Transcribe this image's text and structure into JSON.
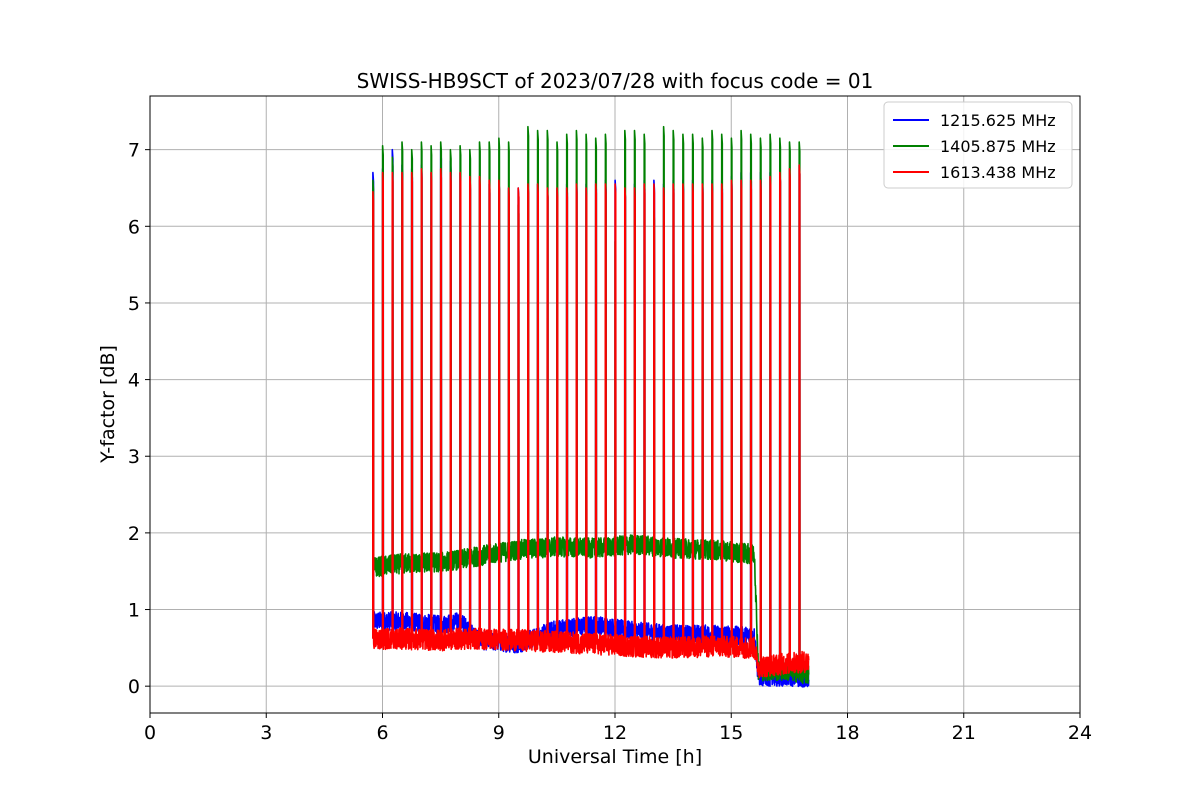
{
  "chart_data": {
    "type": "line",
    "title": "SWISS-HB9SCT of 2023/07/28 with focus code = 01",
    "xlabel": "Universal Time [h]",
    "ylabel": "Y-factor [dB]",
    "xlim": [
      0,
      24
    ],
    "ylim": [
      -0.35,
      7.7
    ],
    "x_ticks": [
      0,
      3,
      6,
      9,
      12,
      15,
      18,
      21,
      24
    ],
    "y_ticks": [
      0,
      1,
      2,
      3,
      4,
      5,
      6,
      7
    ],
    "grid": true,
    "legend_position": "top-right",
    "observation_start_h": 5.75,
    "observation_end_h": 17.0,
    "calibration_pulse_times_h": [
      5.75,
      6.0,
      6.25,
      6.5,
      6.75,
      7.0,
      7.25,
      7.5,
      7.75,
      8.0,
      8.25,
      8.5,
      8.75,
      9.0,
      9.25,
      9.5,
      9.75,
      10.0,
      10.25,
      10.5,
      10.75,
      11.0,
      11.25,
      11.5,
      11.75,
      12.0,
      12.25,
      12.5,
      12.75,
      13.0,
      13.25,
      13.5,
      13.75,
      14.0,
      14.25,
      14.5,
      14.75,
      15.0,
      15.25,
      15.5,
      15.75,
      16.0,
      16.25,
      16.5,
      16.75
    ],
    "series": [
      {
        "name": "1215.625 MHz",
        "color": "#0000ff",
        "baseline": [
          {
            "x": 5.75,
            "y": 0.85
          },
          {
            "x": 6.5,
            "y": 0.85
          },
          {
            "x": 7.5,
            "y": 0.8
          },
          {
            "x": 8.0,
            "y": 0.85
          },
          {
            "x": 8.5,
            "y": 0.6
          },
          {
            "x": 9.5,
            "y": 0.55
          },
          {
            "x": 10.5,
            "y": 0.75
          },
          {
            "x": 11.5,
            "y": 0.8
          },
          {
            "x": 12.5,
            "y": 0.72
          },
          {
            "x": 13.5,
            "y": 0.68
          },
          {
            "x": 14.5,
            "y": 0.68
          },
          {
            "x": 15.6,
            "y": 0.65
          },
          {
            "x": 15.7,
            "y": 0.12
          },
          {
            "x": 16.5,
            "y": 0.12
          },
          {
            "x": 17.0,
            "y": 0.1
          }
        ],
        "noise": 0.12,
        "peak_values": [
          6.7,
          6.75,
          7.0,
          6.8,
          6.75,
          6.8,
          6.7,
          7.0,
          6.85,
          6.7,
          6.6,
          6.6,
          6.55,
          6.6,
          6.5,
          6.5,
          6.55,
          6.55,
          6.5,
          6.5,
          6.55,
          6.6,
          6.55,
          6.6,
          6.6,
          6.6,
          6.5,
          6.55,
          6.6,
          6.6,
          6.55,
          6.6,
          6.6,
          6.6,
          6.6,
          6.6,
          6.6,
          6.65,
          6.7,
          6.7,
          6.7,
          6.7,
          6.7,
          6.75,
          6.8
        ]
      },
      {
        "name": "1405.875 MHz",
        "color": "#008000",
        "baseline": [
          {
            "x": 5.75,
            "y": 1.55
          },
          {
            "x": 6.5,
            "y": 1.6
          },
          {
            "x": 7.5,
            "y": 1.62
          },
          {
            "x": 8.0,
            "y": 1.65
          },
          {
            "x": 8.5,
            "y": 1.7
          },
          {
            "x": 9.5,
            "y": 1.78
          },
          {
            "x": 10.5,
            "y": 1.82
          },
          {
            "x": 11.5,
            "y": 1.8
          },
          {
            "x": 12.5,
            "y": 1.85
          },
          {
            "x": 13.5,
            "y": 1.8
          },
          {
            "x": 14.5,
            "y": 1.78
          },
          {
            "x": 15.6,
            "y": 1.72
          },
          {
            "x": 15.7,
            "y": 0.2
          },
          {
            "x": 16.5,
            "y": 0.2
          },
          {
            "x": 17.0,
            "y": 0.15
          }
        ],
        "noise": 0.13,
        "peak_values": [
          6.6,
          7.05,
          6.9,
          7.1,
          7.0,
          7.1,
          7.05,
          7.1,
          7.0,
          7.05,
          7.0,
          7.1,
          7.1,
          7.15,
          7.1,
          6.28,
          7.3,
          7.25,
          7.25,
          7.1,
          7.2,
          7.25,
          7.2,
          7.15,
          7.2,
          5.8,
          7.25,
          7.25,
          7.2,
          6.2,
          7.3,
          7.25,
          7.2,
          7.2,
          7.15,
          7.25,
          7.2,
          7.15,
          7.25,
          7.2,
          7.15,
          7.2,
          7.15,
          7.1,
          7.1
        ]
      },
      {
        "name": "1613.438 MHz",
        "color": "#ff0000",
        "baseline": [
          {
            "x": 5.75,
            "y": 0.62
          },
          {
            "x": 6.5,
            "y": 0.62
          },
          {
            "x": 7.5,
            "y": 0.6
          },
          {
            "x": 8.0,
            "y": 0.62
          },
          {
            "x": 8.5,
            "y": 0.62
          },
          {
            "x": 9.5,
            "y": 0.6
          },
          {
            "x": 10.5,
            "y": 0.58
          },
          {
            "x": 11.5,
            "y": 0.55
          },
          {
            "x": 12.5,
            "y": 0.52
          },
          {
            "x": 13.5,
            "y": 0.5
          },
          {
            "x": 14.5,
            "y": 0.52
          },
          {
            "x": 15.6,
            "y": 0.5
          },
          {
            "x": 15.7,
            "y": 0.25
          },
          {
            "x": 16.5,
            "y": 0.3
          },
          {
            "x": 17.0,
            "y": 0.32
          }
        ],
        "noise": 0.14,
        "peak_values": [
          6.45,
          6.7,
          6.7,
          6.7,
          6.7,
          6.75,
          6.7,
          6.75,
          6.7,
          6.7,
          6.65,
          6.65,
          6.6,
          6.6,
          6.5,
          6.5,
          6.55,
          6.55,
          6.5,
          6.5,
          6.5,
          6.55,
          6.5,
          6.55,
          6.55,
          6.55,
          6.5,
          6.5,
          6.55,
          6.55,
          6.5,
          6.55,
          6.55,
          6.55,
          6.55,
          6.55,
          6.55,
          6.6,
          6.6,
          6.6,
          6.6,
          6.65,
          6.7,
          6.75,
          6.8
        ]
      }
    ]
  }
}
